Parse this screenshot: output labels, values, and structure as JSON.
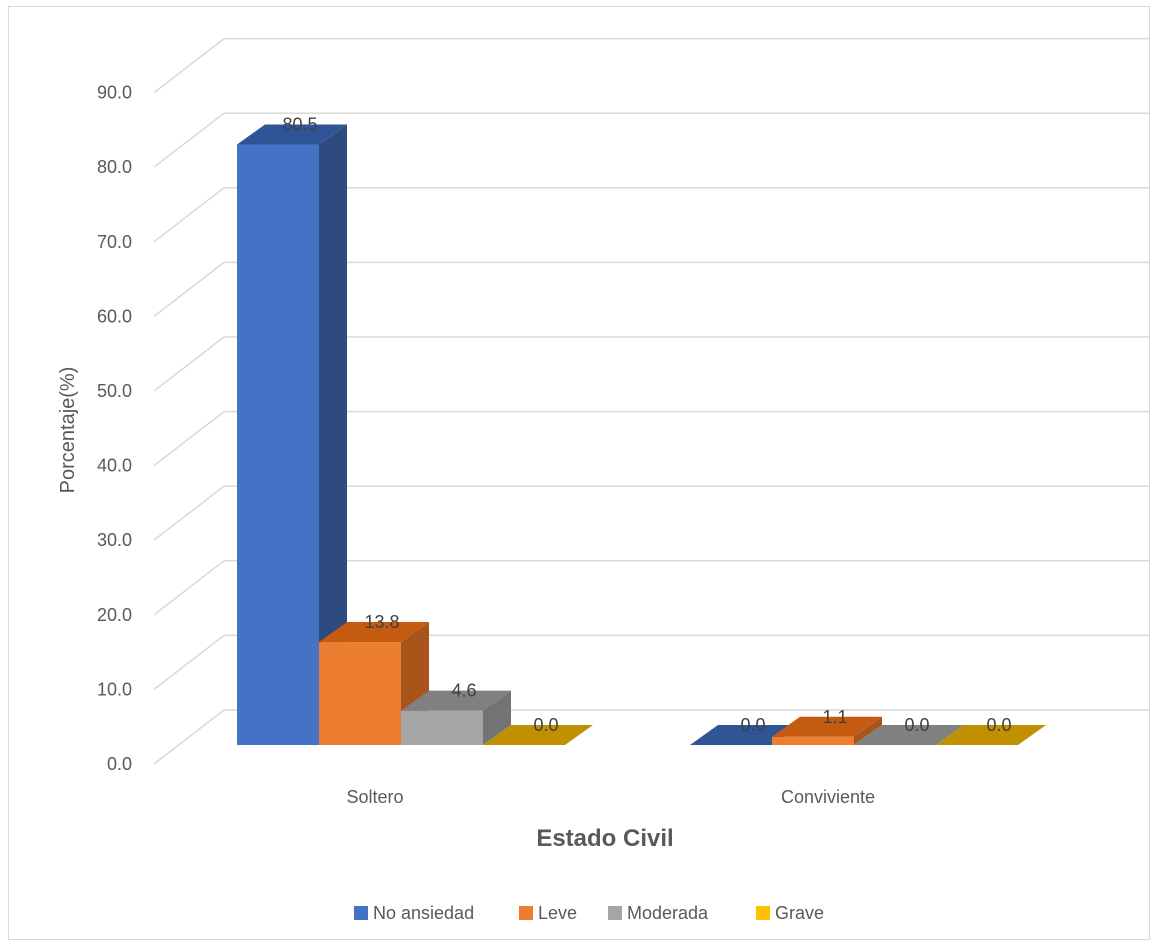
{
  "chart_data": {
    "type": "bar",
    "title": "",
    "xlabel": "Estado Civil",
    "ylabel": "Porcentaje(%)",
    "ylim": [
      0,
      90
    ],
    "yticks": [
      "0.0",
      "10.0",
      "20.0",
      "30.0",
      "40.0",
      "50.0",
      "60.0",
      "70.0",
      "80.0",
      "90.0"
    ],
    "categories": [
      "Soltero",
      "Conviviente"
    ],
    "series": [
      {
        "name": "No ansiedad",
        "values": [
          80.5,
          0.0
        ],
        "labels": [
          "80.5",
          "0.0"
        ],
        "color": "#4472C4",
        "side_color": "#2E4A7F",
        "top_color": "#2F5597"
      },
      {
        "name": "Leve",
        "values": [
          13.8,
          1.1
        ],
        "labels": [
          "13.8",
          "1.1"
        ],
        "color": "#ED7D31",
        "side_color": "#A9541B",
        "top_color": "#C55A11"
      },
      {
        "name": "Moderada",
        "values": [
          4.6,
          0.0
        ],
        "labels": [
          "4.6",
          "0.0"
        ],
        "color": "#A5A5A5",
        "side_color": "#737373",
        "top_color": "#808080"
      },
      {
        "name": "Grave",
        "values": [
          0.0,
          0.0
        ],
        "labels": [
          "0.0",
          "0.0"
        ],
        "color": "#FFC000",
        "side_color": "#B28600",
        "top_color": "#BF9000"
      }
    ],
    "grid": true,
    "legend_position": "bottom",
    "style": "3d-column"
  }
}
